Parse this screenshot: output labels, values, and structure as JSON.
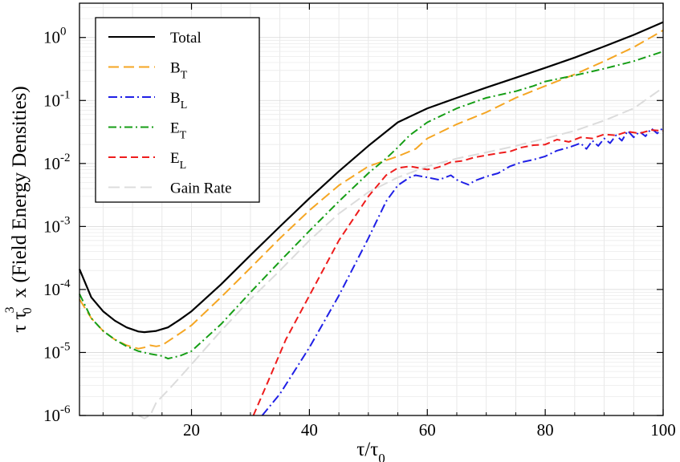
{
  "chart_data": {
    "type": "line",
    "scale": {
      "x": "linear",
      "y": "log"
    },
    "xlim": [
      1,
      100
    ],
    "ylim": [
      1e-06,
      3.5
    ],
    "xticks": [
      20,
      40,
      60,
      80,
      100
    ],
    "yticks": [
      {
        "value": 1e-06,
        "base": "10",
        "exp": "-6"
      },
      {
        "value": 1e-05,
        "base": "10",
        "exp": "-5"
      },
      {
        "value": 0.0001,
        "base": "10",
        "exp": "-4"
      },
      {
        "value": 0.001,
        "base": "10",
        "exp": "-3"
      },
      {
        "value": 0.01,
        "base": "10",
        "exp": "-2"
      },
      {
        "value": 0.1,
        "base": "10",
        "exp": "-1"
      },
      {
        "value": 1,
        "base": "10",
        "exp": "0"
      }
    ],
    "grid": true,
    "xlabel": {
      "main": "τ/τ",
      "sub": "0"
    },
    "ylabel": {
      "part1": "τ τ",
      "sup": "3",
      "sub": "0",
      "part2": "x  (Field Energy Densities)"
    },
    "legend": {
      "position": "top-left"
    },
    "series": [
      {
        "name": "Total",
        "main": "Total",
        "sub": "",
        "color": "#000000",
        "dash": "",
        "x": [
          1,
          3,
          5,
          7,
          9,
          11,
          12,
          14,
          16,
          18,
          20,
          25,
          30,
          35,
          40,
          45,
          50,
          55,
          60,
          65,
          70,
          75,
          80,
          85,
          90,
          95,
          100
        ],
        "y": [
          0.00021,
          7.5e-05,
          4.5e-05,
          3.2e-05,
          2.5e-05,
          2.15e-05,
          2.1e-05,
          2.2e-05,
          2.5e-05,
          3.3e-05,
          4.5e-05,
          0.00012,
          0.00035,
          0.001,
          0.0028,
          0.0075,
          0.019,
          0.045,
          0.075,
          0.11,
          0.16,
          0.23,
          0.33,
          0.48,
          0.72,
          1.1,
          1.75
        ]
      },
      {
        "name": "B_T",
        "main": "B",
        "sub": "T",
        "color": "#f5a623",
        "dash": "13,6",
        "x": [
          1,
          3,
          5,
          7,
          9,
          11,
          12,
          13,
          14,
          15,
          16,
          18,
          20,
          25,
          30,
          35,
          40,
          45,
          50,
          55,
          58,
          60,
          65,
          70,
          75,
          80,
          85,
          90,
          95,
          100
        ],
        "y": [
          7e-05,
          3.5e-05,
          2.2e-05,
          1.6e-05,
          1.3e-05,
          1.15e-05,
          1.2e-05,
          1.3e-05,
          1.25e-05,
          1.3e-05,
          1.5e-05,
          2e-05,
          2.7e-05,
          7.5e-05,
          0.00022,
          0.00065,
          0.0018,
          0.0045,
          0.009,
          0.013,
          0.017,
          0.025,
          0.042,
          0.065,
          0.11,
          0.17,
          0.26,
          0.42,
          0.7,
          1.3
        ]
      },
      {
        "name": "B_L",
        "main": "B",
        "sub": "L",
        "color": "#1f1fe6",
        "dash": "11,4,2,4",
        "x": [
          32,
          35,
          40,
          45,
          50,
          53,
          55,
          57,
          58,
          60,
          62,
          64,
          65,
          66,
          67,
          68,
          70,
          72,
          74,
          76,
          78,
          80,
          82,
          84,
          86,
          87,
          88,
          89,
          90,
          91,
          92,
          93,
          94,
          95,
          96,
          97,
          98,
          99,
          100
        ],
        "y": [
          1e-06,
          2.2e-06,
          1.2e-05,
          8e-05,
          0.00065,
          0.0025,
          0.0045,
          0.006,
          0.0065,
          0.006,
          0.0055,
          0.0065,
          0.0055,
          0.005,
          0.0046,
          0.0053,
          0.0062,
          0.007,
          0.009,
          0.0105,
          0.0115,
          0.013,
          0.016,
          0.018,
          0.021,
          0.017,
          0.023,
          0.019,
          0.025,
          0.021,
          0.028,
          0.023,
          0.033,
          0.026,
          0.032,
          0.027,
          0.036,
          0.03,
          0.037
        ]
      },
      {
        "name": "E_T",
        "main": "E",
        "sub": "T",
        "color": "#169e16",
        "dash": "10,4,2,4",
        "x": [
          1,
          3,
          5,
          7,
          9,
          11,
          13,
          15,
          16,
          17,
          18,
          20,
          25,
          30,
          35,
          40,
          45,
          50,
          53,
          55,
          57,
          60,
          65,
          70,
          75,
          78,
          80,
          85,
          90,
          95,
          100
        ],
        "y": [
          8.5e-05,
          3.5e-05,
          2.2e-05,
          1.6e-05,
          1.25e-05,
          1.05e-05,
          9.5e-06,
          8.8e-06,
          8e-06,
          8.4e-06,
          8.8e-06,
          1.05e-05,
          2.8e-05,
          9e-05,
          0.00028,
          0.00085,
          0.0025,
          0.007,
          0.012,
          0.018,
          0.028,
          0.045,
          0.075,
          0.11,
          0.14,
          0.17,
          0.2,
          0.25,
          0.32,
          0.42,
          0.6
        ]
      },
      {
        "name": "E_L",
        "main": "E",
        "sub": "L",
        "color": "#ee1c1c",
        "dash": "9,5",
        "x": [
          30.5,
          33,
          36,
          40,
          45,
          50,
          53,
          55,
          57,
          58,
          60,
          61,
          62,
          64,
          66,
          68,
          70,
          72,
          74,
          76,
          78,
          80,
          82,
          84,
          86,
          88,
          90,
          92,
          94,
          96,
          98,
          100
        ],
        "y": [
          1e-06,
          3.5e-06,
          1.6e-05,
          8e-05,
          0.0006,
          0.003,
          0.0065,
          0.0085,
          0.009,
          0.0087,
          0.008,
          0.0083,
          0.0088,
          0.0105,
          0.011,
          0.0125,
          0.0135,
          0.0145,
          0.0155,
          0.018,
          0.0195,
          0.02,
          0.024,
          0.022,
          0.026,
          0.025,
          0.029,
          0.028,
          0.032,
          0.03,
          0.034,
          0.033
        ]
      },
      {
        "name": "Gain Rate",
        "main": "Gain Rate",
        "sub": "",
        "color": "#dcdcdc",
        "dash": "14,6",
        "x": [
          11,
          12,
          13,
          14,
          16,
          18,
          20,
          25,
          30,
          35,
          40,
          45,
          50,
          55,
          60,
          65,
          70,
          75,
          80,
          85,
          90,
          95,
          100
        ],
        "y": [
          1e-06,
          9e-07,
          1e-06,
          1.6e-06,
          2.5e-06,
          4e-06,
          6.5e-06,
          2.2e-05,
          7e-05,
          0.0002,
          0.0006,
          0.0016,
          0.0035,
          0.006,
          0.009,
          0.012,
          0.015,
          0.019,
          0.025,
          0.033,
          0.048,
          0.075,
          0.16
        ]
      }
    ]
  }
}
